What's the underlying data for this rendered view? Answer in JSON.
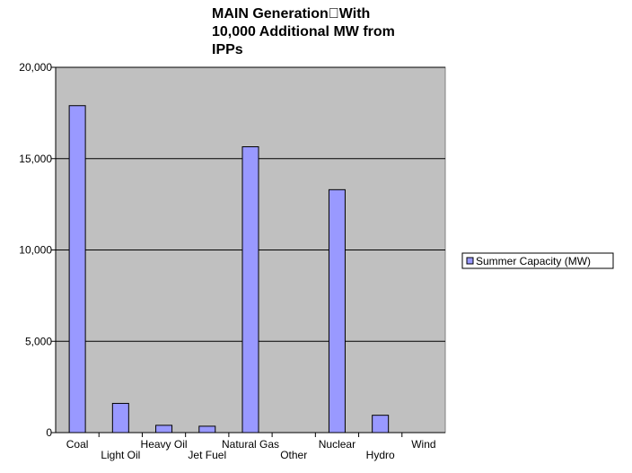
{
  "chart_data": {
    "type": "bar",
    "title_lines": [
      "MAIN Generation\u0000With",
      "10,000 Additional MW from",
      "IPPs"
    ],
    "categories": [
      "Coal",
      "Light Oil",
      "Heavy  Oil",
      "Jet Fuel",
      "Natural Gas",
      "Other",
      "Nuclear",
      "Hydro",
      "Wind"
    ],
    "series": [
      {
        "name": "Summer Capacity (MW)",
        "values": [
          17900,
          1600,
          400,
          350,
          15650,
          0,
          13300,
          950,
          0
        ]
      }
    ],
    "ylim": [
      0,
      20000
    ],
    "yticks": [
      0,
      5000,
      10000,
      15000,
      20000
    ],
    "ytick_labels": [
      "0",
      "5,000",
      "10,000",
      "15,000",
      "20,000"
    ],
    "grid": true,
    "legend_position": "right",
    "colors": {
      "plot_background": "#c0c0c0",
      "bar_fill": "#9999ff",
      "bar_stroke": "#000000",
      "gridline": "#000000"
    }
  }
}
